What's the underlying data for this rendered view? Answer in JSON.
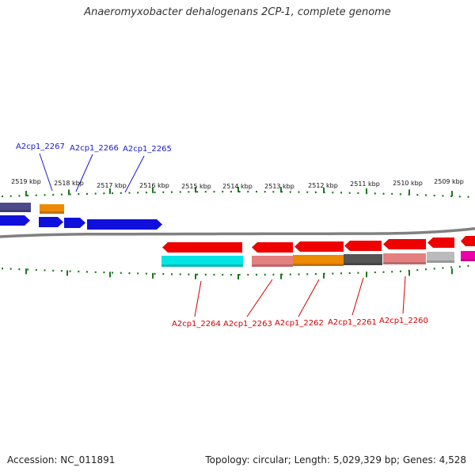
{
  "title": "Anaeromyxobacter dehalogenans 2CP-1, complete genome",
  "footer": {
    "accession": "Accession: NC_011891",
    "topology": "Topology: circular; Length: 5,029,329 bp; Genes: 4,528"
  },
  "colors": {
    "backbone": "#808080",
    "ticks": "#1a7a1a",
    "top_callouts": "#1a1acc",
    "bottom_callouts": "#d10000"
  },
  "scale_ticks": [
    "2519 kbp",
    "2518 kbp",
    "2517 kbp",
    "2516 kbp",
    "2515 kbp",
    "2514 kbp",
    "2513 kbp",
    "2512 kbp",
    "2511 kbp",
    "2510 kbp",
    "2509 kbp"
  ],
  "top_gene_labels": [
    "A2cp1_2267",
    "A2cp1_2266",
    "A2cp1_2265"
  ],
  "bottom_gene_labels": [
    "A2cp1_2264",
    "A2cp1_2263",
    "A2cp1_2262",
    "A2cp1_2261",
    "A2cp1_2260"
  ],
  "forward_genes": [
    {
      "row": "outer",
      "color": "#4b4b8a"
    },
    {
      "row": "outer",
      "color": "#ee8a00"
    },
    {
      "row": "inner",
      "color": "#1010dd"
    },
    {
      "row": "inner",
      "color": "#1010dd"
    },
    {
      "row": "inner",
      "color": "#1010dd"
    },
    {
      "row": "inner",
      "color": "#1010dd"
    }
  ],
  "reverse_genes": [
    {
      "row": "outer",
      "color": "#ee0000"
    },
    {
      "row": "outer",
      "color": "#ee0000"
    },
    {
      "row": "outer",
      "color": "#ee0000"
    },
    {
      "row": "outer",
      "color": "#ee0000"
    },
    {
      "row": "outer",
      "color": "#ee0000"
    },
    {
      "row": "outer",
      "color": "#ee0000"
    },
    {
      "row": "outer",
      "color": "#ee0000"
    },
    {
      "row": "inner",
      "color": "#00e5e5"
    },
    {
      "row": "inner",
      "color": "#e58080"
    },
    {
      "row": "inner",
      "color": "#ee8a00"
    },
    {
      "row": "inner",
      "color": "#555555"
    },
    {
      "row": "inner",
      "color": "#e58080"
    },
    {
      "row": "inner",
      "color": "#bbbbbb"
    },
    {
      "row": "inner",
      "color": "#ee00aa"
    }
  ]
}
